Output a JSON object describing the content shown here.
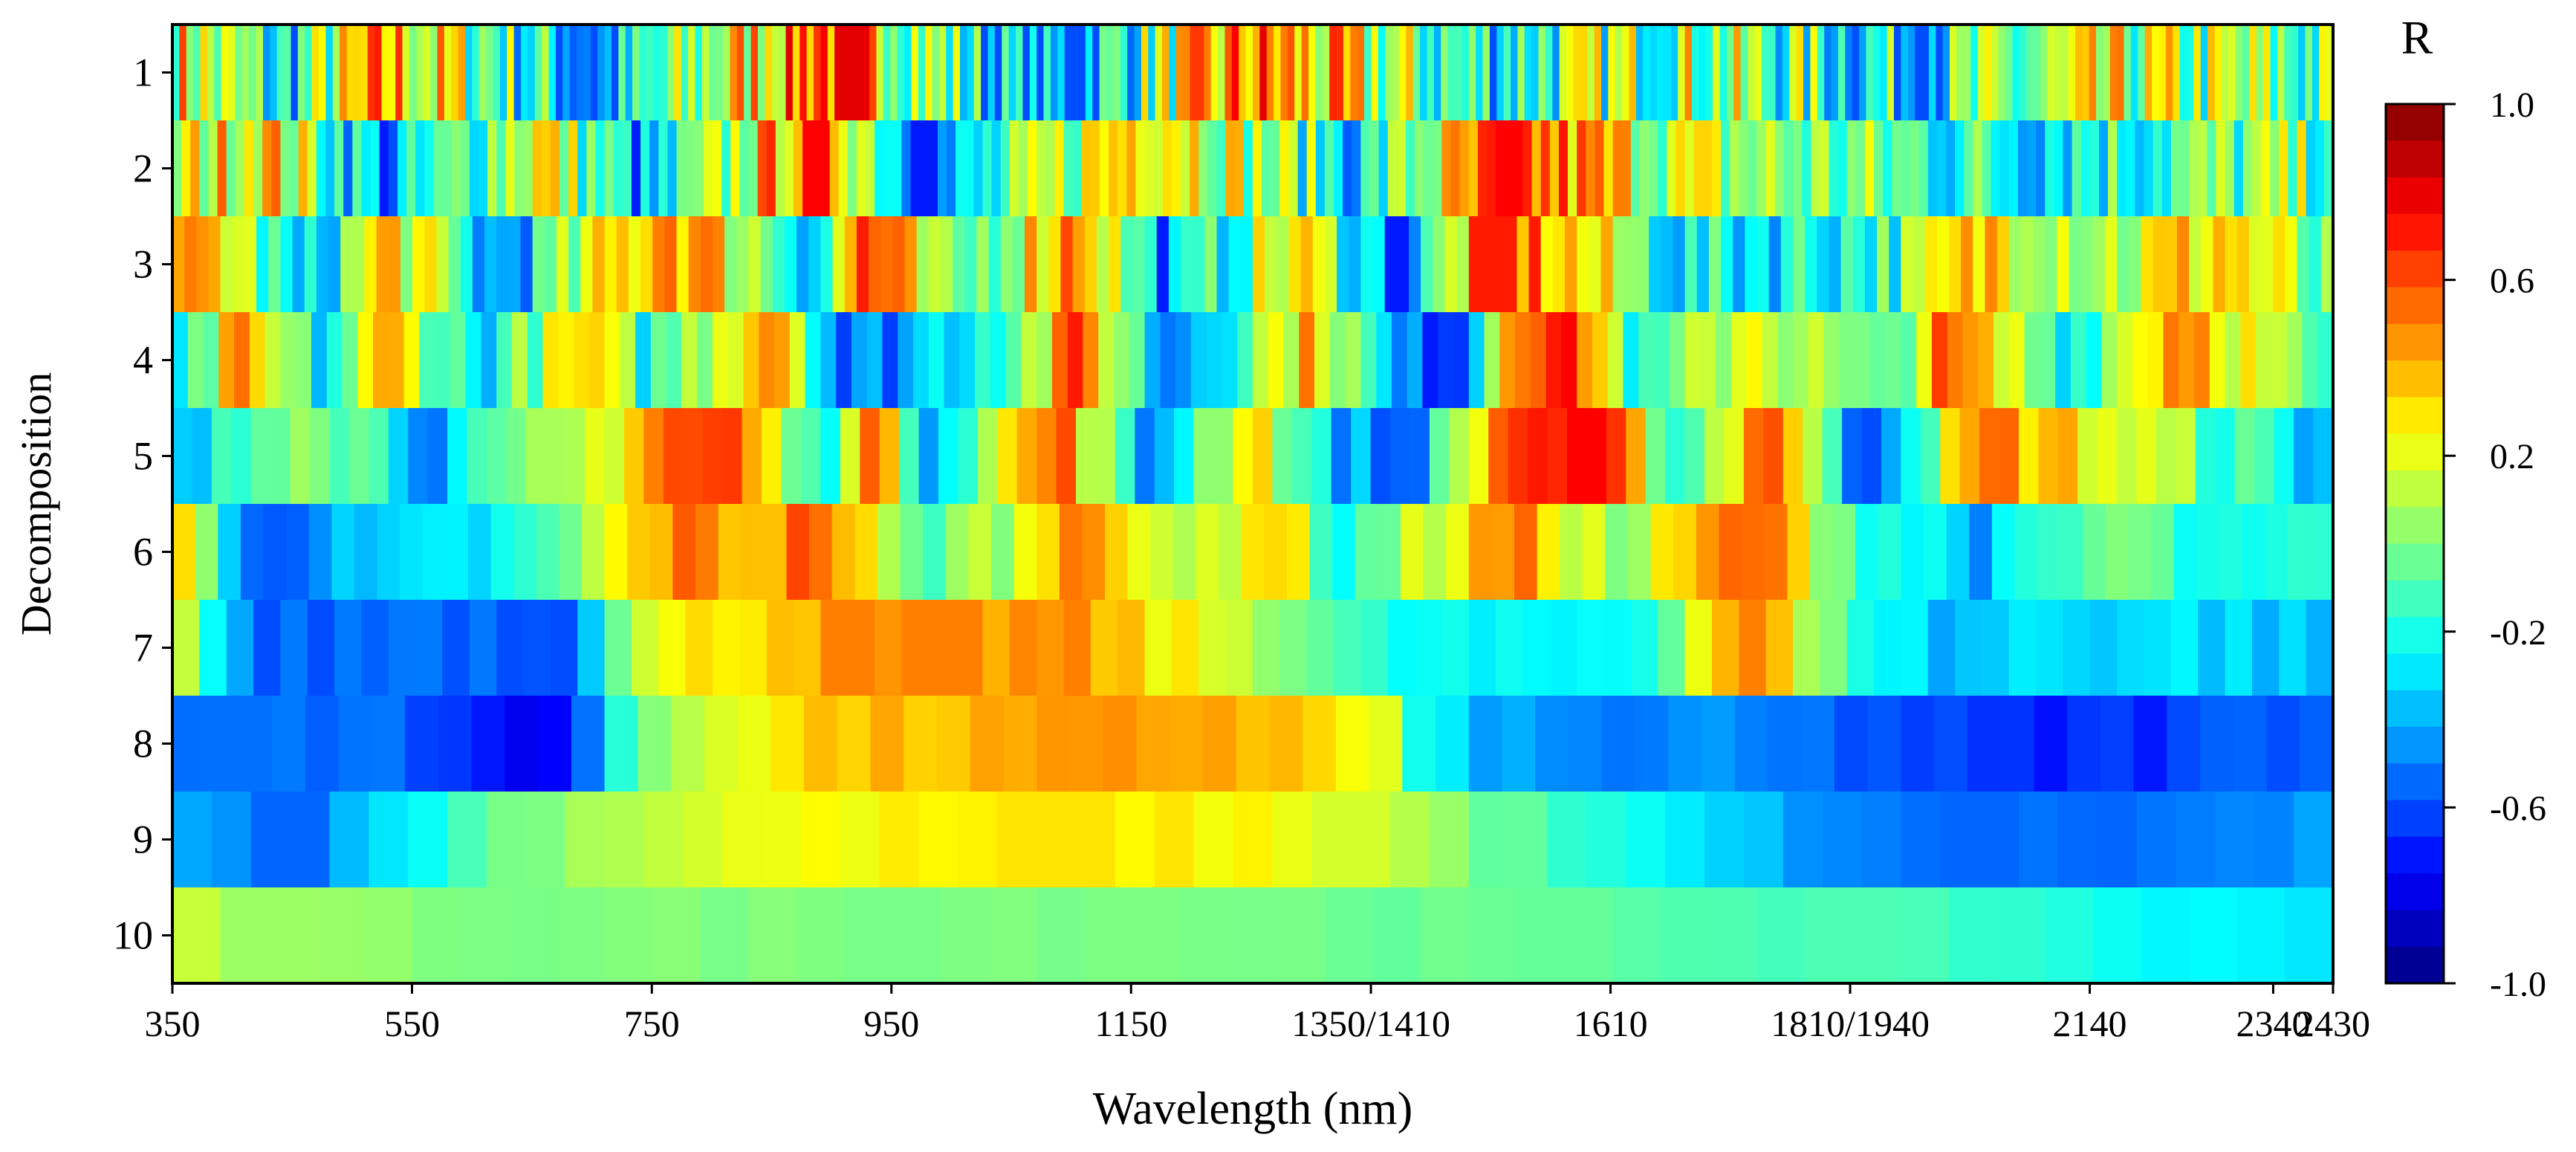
{
  "chart_data": {
    "type": "heatmap",
    "title": "",
    "xlabel": "Wavelength (nm)",
    "ylabel": "Decomposition",
    "colorbar_title": "R",
    "x_tick_labels": [
      "350",
      "550",
      "750",
      "950",
      "1150",
      "1350/1410",
      "1610",
      "1810/1940",
      "2140",
      "2340",
      "2430"
    ],
    "x_tick_nominal": [
      350,
      550,
      750,
      950,
      1150,
      1350,
      1610,
      1810,
      2140,
      2340,
      2430
    ],
    "x_breaks": [
      "1350-1410",
      "1810-1940"
    ],
    "y_tick_labels": [
      "1",
      "2",
      "3",
      "4",
      "5",
      "6",
      "7",
      "8",
      "9",
      "10"
    ],
    "colorbar_ticks": [
      "1.0",
      "0.6",
      "0.2",
      "-0.2",
      "-0.6",
      "-1.0"
    ],
    "colorbar_range": [
      -1.0,
      1.0
    ],
    "colormap": "jet",
    "colorbar_levels": 24,
    "rows": [
      {
        "level": 1,
        "pattern": "high-frequency alternating positive and negative correlation across the full spectrum",
        "range": [
          -0.6,
          0.8
        ]
      },
      {
        "level": 2,
        "pattern": "dense fluctuations; strongest positive near 750-950 nm and around 1610 nm",
        "range": [
          -0.7,
          0.75
        ]
      },
      {
        "level": 3,
        "pattern": "alternating bands; positive peaks near 760, 950, 1620, 1650 nm",
        "range": [
          -0.7,
          0.7
        ]
      },
      {
        "level": 4,
        "pattern": "strong positive block near 1590-1670 nm (~0.7); positive near 760-950 and 1350 nm",
        "range": [
          -0.7,
          0.75
        ]
      },
      {
        "level": 5,
        "pattern": "positive near 760-950, 1150, 1350 and 1600-1680 nm; negative near 400, 1500, 2000 nm",
        "range": [
          -0.7,
          0.75
        ]
      },
      {
        "level": 6,
        "pattern": "moderate positive near 800-950 and 1150 nm; mostly negative below 700 and above 1700 nm",
        "range": [
          -0.6,
          0.7
        ]
      },
      {
        "level": 7,
        "pattern": "broad positive 750-1250 nm (~0.45); negative 400-700 nm",
        "range": [
          -0.6,
          0.5
        ]
      },
      {
        "level": 8,
        "pattern": "positive 780-1350 nm (~0.35-0.5); strongly negative 500-700 nm and 1800-2430 nm",
        "range": [
          -0.8,
          0.5
        ]
      },
      {
        "level": 9,
        "pattern": "weak positive 700-1400 nm (~0.2-0.3); negative 350-500 nm and 1900-2430 nm",
        "range": [
          -0.55,
          0.3
        ]
      },
      {
        "level": 10,
        "pattern": "near zero across spectrum; slightly positive at 350-400 nm, slightly negative above 2200 nm",
        "range": [
          -0.3,
          0.15
        ]
      }
    ]
  }
}
